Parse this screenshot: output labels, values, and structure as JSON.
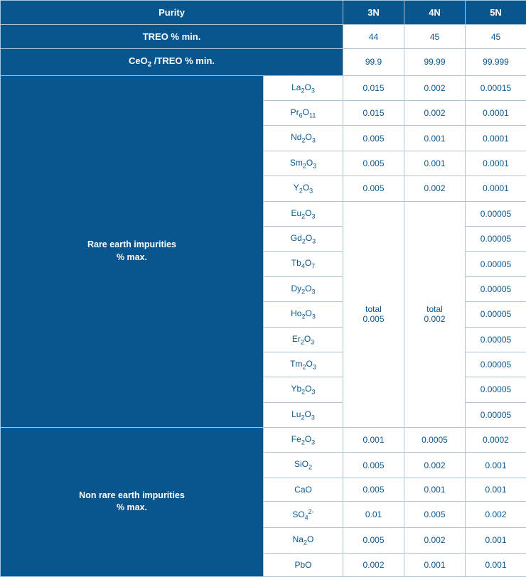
{
  "colors": {
    "background": "#08568d",
    "header_bg": "#08568d",
    "header_text": "#ffffff",
    "cell_bg": "#ffffff",
    "cell_text": "#08568d",
    "border": "#abc4d6"
  },
  "columns": {
    "width_label_section": 370,
    "width_compound": 110,
    "width_value": 86
  },
  "header": {
    "purity": "Purity",
    "n3": "3N",
    "n4": "4N",
    "n5": "5N"
  },
  "top_rows": [
    {
      "label": "TREO % min.",
      "v3": "44",
      "v4": "45",
      "v5": "45"
    },
    {
      "label_html": "CeO<sub>2</sub> /TREO % min.",
      "v3": "99.9",
      "v4": "99.99",
      "v5": "99.999"
    }
  ],
  "rare_earth": {
    "section_label_html": "Rare earth impurities<br>% max.",
    "rows_top": [
      {
        "compound_html": "La<sub>2</sub>O<sub>3</sub>",
        "v3": "0.015",
        "v4": "0.002",
        "v5": "0.00015"
      },
      {
        "compound_html": "Pr<sub>6</sub>O<sub>11</sub>",
        "v3": "0.015",
        "v4": "0.002",
        "v5": "0.0001"
      },
      {
        "compound_html": "Nd<sub>2</sub>O<sub>3</sub>",
        "v3": "0.005",
        "v4": "0.001",
        "v5": "0.0001"
      },
      {
        "compound_html": "Sm<sub>2</sub>O<sub>3</sub>",
        "v3": "0.005",
        "v4": "0.001",
        "v5": "0.0001"
      },
      {
        "compound_html": "Y<sub>2</sub>O<sub>3</sub>",
        "v3": "0.005",
        "v4": "0.002",
        "v5": "0.0001"
      }
    ],
    "merge": {
      "v3_html": "total<br>0.005",
      "v4_html": "total<br>0.002"
    },
    "rows_bottom": [
      {
        "compound_html": "Eu<sub>2</sub>O<sub>3</sub>",
        "v5": "0.00005"
      },
      {
        "compound_html": "Gd<sub>2</sub>O<sub>3</sub>",
        "v5": "0.00005"
      },
      {
        "compound_html": "Tb<sub>4</sub>O<sub>7</sub>",
        "v5": "0.00005"
      },
      {
        "compound_html": "Dy<sub>2</sub>O<sub>3</sub>",
        "v5": "0.00005"
      },
      {
        "compound_html": "Ho<sub>2</sub>O<sub>3</sub>",
        "v5": "0.00005"
      },
      {
        "compound_html": "Er<sub>2</sub>O<sub>3</sub>",
        "v5": "0.00005"
      },
      {
        "compound_html": "Tm<sub>2</sub>O<sub>3</sub>",
        "v5": "0.00005"
      },
      {
        "compound_html": "Yb<sub>2</sub>O<sub>3</sub>",
        "v5": "0.00005"
      },
      {
        "compound_html": "Lu<sub>2</sub>O<sub>3</sub>",
        "v5": "0.00005"
      }
    ]
  },
  "non_rare_earth": {
    "section_label_html": "Non rare earth impurities<br>% max.",
    "rows": [
      {
        "compound_html": "Fe<sub>2</sub>O<sub>3</sub>",
        "v3": "0.001",
        "v4": "0.0005",
        "v5": "0.0002"
      },
      {
        "compound_html": "SiO<sub>2</sub>",
        "v3": "0.005",
        "v4": "0.002",
        "v5": "0.001"
      },
      {
        "compound_html": "CaO",
        "v3": "0.005",
        "v4": "0.001",
        "v5": "0.001"
      },
      {
        "compound_html": "SO<sub>4</sub><sup>2-</sup>",
        "v3": "0.01",
        "v4": "0.005",
        "v5": "0.002"
      },
      {
        "compound_html": "Na<sub>2</sub>O",
        "v3": "0.005",
        "v4": "0.002",
        "v5": "0.001"
      },
      {
        "compound_html": "PbO",
        "v3": "0.002",
        "v4": "0.001",
        "v5": "0.001"
      }
    ]
  }
}
